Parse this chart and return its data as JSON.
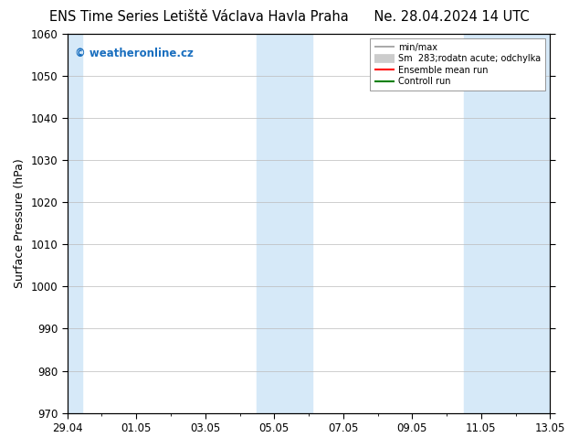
{
  "title_left": "ENS Time Series Letiště Václava Havla Praha",
  "title_right": "Ne. 28.04.2024 14 UTC",
  "ylabel": "Surface Pressure (hPa)",
  "ylim": [
    970,
    1060
  ],
  "yticks": [
    970,
    980,
    990,
    1000,
    1010,
    1020,
    1030,
    1040,
    1050,
    1060
  ],
  "x_labels": [
    "29.04",
    "01.05",
    "03.05",
    "05.05",
    "07.05",
    "09.05",
    "11.05",
    "13.05"
  ],
  "x_positions": [
    0,
    2,
    4,
    6,
    8,
    10,
    12,
    14
  ],
  "x_min": 0,
  "x_max": 14,
  "shaded_bands": [
    {
      "x_start": 0.0,
      "x_end": 0.42,
      "color": "#d6e9f8"
    },
    {
      "x_start": 5.5,
      "x_end": 7.1,
      "color": "#d6e9f8"
    },
    {
      "x_start": 11.5,
      "x_end": 14.0,
      "color": "#d6e9f8"
    }
  ],
  "background_color": "#ffffff",
  "grid_color": "#bbbbbb",
  "watermark_text": "© weatheronline.cz",
  "watermark_color": "#1a6fbf",
  "legend_entries": [
    {
      "label": "min/max",
      "color": "#999999",
      "lw": 1.2
    },
    {
      "label": "Sm  283;rodatn acute; odchylka",
      "color": "#cccccc",
      "lw": 7
    },
    {
      "label": "Ensemble mean run",
      "color": "#ff0000",
      "lw": 1.5
    },
    {
      "label": "Controll run",
      "color": "#008000",
      "lw": 1.5
    }
  ],
  "title_fontsize": 10.5,
  "tick_fontsize": 8.5,
  "label_fontsize": 9,
  "fig_width": 6.34,
  "fig_height": 4.9,
  "dpi": 100
}
